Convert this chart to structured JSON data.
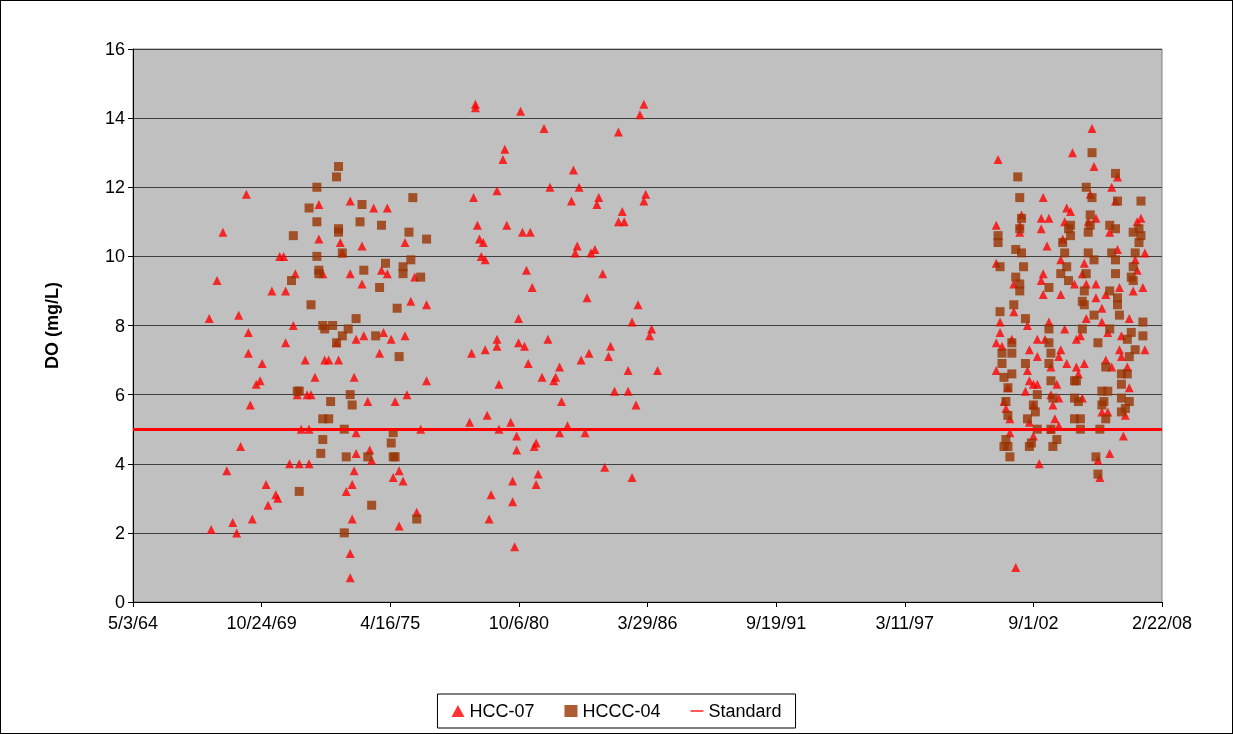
{
  "chart_data": {
    "type": "scatter",
    "ylabel": "DO (mg/L)",
    "xlim": [
      "1964-05-03",
      "2008-02-22"
    ],
    "xticks": [
      {
        "value": "1964-05-03",
        "label": "5/3/64"
      },
      {
        "value": "1969-10-24",
        "label": "10/24/69"
      },
      {
        "value": "1975-04-16",
        "label": "4/16/75"
      },
      {
        "value": "1980-10-06",
        "label": "10/6/80"
      },
      {
        "value": "1986-03-29",
        "label": "3/29/86"
      },
      {
        "value": "1991-09-19",
        "label": "9/19/91"
      },
      {
        "value": "1997-03-11",
        "label": "3/11/97"
      },
      {
        "value": "2002-09-01",
        "label": "9/1/02"
      },
      {
        "value": "2008-02-22",
        "label": "2/22/08"
      }
    ],
    "ylim": [
      0,
      16
    ],
    "yticks": [
      0,
      2,
      4,
      6,
      8,
      10,
      12,
      14,
      16
    ],
    "grid": "y",
    "legend": "bottom",
    "ref_lines": [
      {
        "axis": "y",
        "value": 5,
        "label": "Standard",
        "color": "#ff0000"
      }
    ],
    "series": [
      {
        "name": "HCC-07",
        "color": "#ff0000",
        "marker": "triangle",
        "x": [
          "1969-03",
          "1968-03",
          "1972-04",
          "1973-08",
          "1974-08",
          "1975-03",
          "1972-04",
          "1973-03",
          "1974-02",
          "1975-12",
          "1970-08",
          "1970-10",
          "1973-04",
          "1971-04",
          "1972-06",
          "1973-08",
          "1974-02",
          "1974-12",
          "1975-03",
          "1976-05",
          "1967-12",
          "1970-04",
          "1970-11",
          "1976-03",
          "1976-11",
          "1967-08",
          "1968-11",
          "1971-03",
          "1969-04",
          "1970-11",
          "1973-01",
          "1973-11",
          "1974-03",
          "1975-01",
          "1975-05",
          "1975-12",
          "1969-04",
          "1974-11",
          "1969-11",
          "1971-09",
          "1972-07",
          "1972-09",
          "1973-02",
          "1969-08",
          "1969-10",
          "1972-02",
          "1973-10",
          "1976-11",
          "1971-05",
          "1971-10",
          "1971-12",
          "1969-05",
          "1974-05",
          "1975-07",
          "1976-01",
          "1971-07",
          "1971-11",
          "1973-11",
          "1976-08",
          "1968-12",
          "1974-06",
          "1973-11",
          "1974-07",
          "1968-05",
          "1971-01",
          "1971-06",
          "1971-11",
          "1973-10",
          "1975-09",
          "1975-06",
          "1975-11",
          "1973-09",
          "1973-06",
          "1970-01",
          "1970-06",
          "1970-07",
          "1970-02",
          "1969-06",
          "1968-08",
          "1967-09",
          "1968-10",
          "1973-09",
          "1975-09",
          "1976-06",
          "1973-08",
          "1973-08",
          "1978-12",
          "1978-12",
          "1980-11",
          "1986-02",
          "1985-12",
          "1981-11",
          "1985-01",
          "1980-03",
          "1980-02",
          "1983-02",
          "1978-11",
          "1979-11",
          "1982-02",
          "1983-05",
          "1983-01",
          "1984-03",
          "1984-02",
          "1986-03",
          "1986-02",
          "1985-03",
          "1985-01",
          "1985-04",
          "1979-01",
          "1980-04",
          "1980-12",
          "1981-04",
          "1979-02",
          "1979-04",
          "1983-04",
          "1983-03",
          "1984-01",
          "1983-11",
          "1979-03",
          "1979-05",
          "1981-02",
          "1984-05",
          "1981-05",
          "1983-09",
          "1985-11",
          "1985-08",
          "1980-10",
          "1986-06",
          "1986-05",
          "1978-10",
          "1979-05",
          "1979-11",
          "1979-11",
          "1980-10",
          "1981-01",
          "1982-01",
          "1984-09",
          "1983-10",
          "1983-06",
          "1984-08",
          "1981-03",
          "1982-07",
          "1985-06",
          "1986-09",
          "1979-12",
          "1981-10",
          "1982-05",
          "1982-04",
          "1984-11",
          "1985-06",
          "1982-08",
          "1985-10",
          "1979-06",
          "1978-09",
          "1980-06",
          "1979-12",
          "1980-09",
          "1980-09",
          "1982-07",
          "1982-11",
          "1983-08",
          "1981-07",
          "1981-06",
          "1984-06",
          "1985-08",
          "1981-08",
          "1981-07",
          "1980-07",
          "1979-08",
          "1980-07",
          "1979-07",
          "1980-08",
          "2001-03",
          "2004-05",
          "2003-02",
          "2004-02",
          "2004-04",
          "2002-03",
          "2003-01",
          "2003-05",
          "2001-02",
          "2002-02",
          "2003-01",
          "2002-02",
          "2004-01",
          "2003-04",
          "2003-12",
          "2001-02",
          "2003-02",
          "2003-01",
          "2001-11",
          "2004-06",
          "2003-11",
          "2003-02",
          "2003-11",
          "2001-11",
          "2001-04",
          "2002-06",
          "2003-05",
          "2004-01",
          "2001-04",
          "2004-07",
          "2001-02",
          "2001-05",
          "2001-10",
          "2002-11",
          "2003-03",
          "2002-07",
          "2003-11",
          "2002-11",
          "2003-10",
          "2003-06",
          "2004-02",
          "2004-07",
          "2001-02",
          "2002-06",
          "2002-07",
          "2002-09",
          "2002-11",
          "2003-09",
          "2002-05",
          "2001-08",
          "2003-06",
          "2003-10",
          "2001-06",
          "2003-07",
          "2001-07",
          "2002-09",
          "2001-09",
          "2002-07",
          "2003-08",
          "2003-10",
          "2003-06",
          "2002-09",
          "2001-09",
          "2002-12",
          "2001-12",
          "2005-03",
          "2005-04",
          "2006-04",
          "2006-01",
          "2005-02",
          "2006-03",
          "2005-01",
          "2005-05",
          "2005-12",
          "2007-04",
          "2007-02",
          "2006-04",
          "2007-06",
          "2007-01",
          "2004-11",
          "2007-02",
          "2004-10",
          "2005-05",
          "2004-12",
          "2006-05",
          "2006-12",
          "2007-05",
          "2005-10",
          "2005-05",
          "2005-08",
          "2004-12",
          "2005-08",
          "2006-10",
          "2005-11",
          "2004-09",
          "2006-06",
          "2007-06",
          "2006-05",
          "2005-10",
          "2006-06",
          "2004-11",
          "2006-09",
          "2006-01",
          "2004-08",
          "2006-10",
          "2004-10",
          "2005-08",
          "2005-11",
          "2006-08",
          "2006-07",
          "2005-12",
          "2005-06",
          "2005-07"
        ],
        "values": [
          11.8,
          10.7,
          11.5,
          11.6,
          11.4,
          11.4,
          10.5,
          10.4,
          10.3,
          10.4,
          10.0,
          10.0,
          10.1,
          9.5,
          9.5,
          9.5,
          9.2,
          9.6,
          9.5,
          9.4,
          9.3,
          9.0,
          9.0,
          8.7,
          8.6,
          8.2,
          8.3,
          8.0,
          7.8,
          7.5,
          7.5,
          7.6,
          7.7,
          7.8,
          7.6,
          7.7,
          7.2,
          7.2,
          6.9,
          7.0,
          7.0,
          7.0,
          7.0,
          6.3,
          6.4,
          6.5,
          6.5,
          6.4,
          6.0,
          6.0,
          6.0,
          5.7,
          5.8,
          5.8,
          6.0,
          5.0,
          5.0,
          4.9,
          5.0,
          4.5,
          4.4,
          4.3,
          4.1,
          3.8,
          4.0,
          4.0,
          4.0,
          3.8,
          3.8,
          3.6,
          3.5,
          3.4,
          3.2,
          3.4,
          3.1,
          3.0,
          2.8,
          2.4,
          2.3,
          2.1,
          2.0,
          2.4,
          2.2,
          2.6,
          1.4,
          0.7,
          14.4,
          14.3,
          14.2,
          14.4,
          14.1,
          13.7,
          13.6,
          13.1,
          12.8,
          12.5,
          11.7,
          11.9,
          12.0,
          12.0,
          11.6,
          11.7,
          11.5,
          11.8,
          11.6,
          11.3,
          11.0,
          11.0,
          10.9,
          10.9,
          10.7,
          10.7,
          10.5,
          10.4,
          10.3,
          10.1,
          10.2,
          10.1,
          10.0,
          9.9,
          9.6,
          9.5,
          9.1,
          8.8,
          8.6,
          8.1,
          8.2,
          7.9,
          7.7,
          7.2,
          7.3,
          7.6,
          7.4,
          7.5,
          7.4,
          7.6,
          7.4,
          7.2,
          7.0,
          7.1,
          6.9,
          6.8,
          6.7,
          6.7,
          6.3,
          6.5,
          6.5,
          6.4,
          6.1,
          6.1,
          5.8,
          5.7,
          5.4,
          5.2,
          5.2,
          5.0,
          4.8,
          4.4,
          4.9,
          5.1,
          4.9,
          4.6,
          4.5,
          3.9,
          3.6,
          3.7,
          3.4,
          3.5,
          3.1,
          2.9,
          2.4,
          1.6,
          12.8,
          13.0,
          11.7,
          11.4,
          11.3,
          11.2,
          11.1,
          11.1,
          10.9,
          10.9,
          10.8,
          10.7,
          11.0,
          10.3,
          10.5,
          9.8,
          9.5,
          9.3,
          9.2,
          9.2,
          9.9,
          8.9,
          8.9,
          8.4,
          8.1,
          8.0,
          8.1,
          7.9,
          7.8,
          7.6,
          7.5,
          7.4,
          7.6,
          7.6,
          7.6,
          7.3,
          7.3,
          7.1,
          7.1,
          6.8,
          6.9,
          6.8,
          6.7,
          6.7,
          6.4,
          6.3,
          6.3,
          6.3,
          6.1,
          6.2,
          6.0,
          5.9,
          5.8,
          5.7,
          5.6,
          5.7,
          5.3,
          5.2,
          5.3,
          5.1,
          5.0,
          4.8,
          4.9,
          4.0,
          1.0,
          13.7,
          12.6,
          12.3,
          12.0,
          11.8,
          11.6,
          11.0,
          11.1,
          10.7,
          11.1,
          11.0,
          10.2,
          10.1,
          9.9,
          9.8,
          9.6,
          9.5,
          9.2,
          9.2,
          9.1,
          9.0,
          9.1,
          8.9,
          8.8,
          8.5,
          8.2,
          8.1,
          8.2,
          7.8,
          7.7,
          7.7,
          7.3,
          7.3,
          7.0,
          7.1,
          6.9,
          6.8,
          6.8,
          6.6,
          6.2,
          5.9,
          5.5,
          5.5,
          5.4,
          4.8,
          4.3,
          4.1,
          3.6
        ]
      },
      {
        "name": "HCCC-04",
        "color": "#993300",
        "marker": "square",
        "x": [
          "1973-02",
          "1973-01",
          "1972-03",
          "1976-04",
          "1971-11",
          "1974-02",
          "1972-03",
          "1974-01",
          "1974-12",
          "1973-02",
          "1973-02",
          "1971-03",
          "1976-02",
          "1976-11",
          "1973-04",
          "1972-03",
          "1976-03",
          "1975-02",
          "1972-04",
          "1972-04",
          "1974-03",
          "1975-11",
          "1975-11",
          "1976-08",
          "1971-02",
          "1974-11",
          "1971-12",
          "1975-08",
          "1973-11",
          "1972-06",
          "1972-11",
          "1972-07",
          "1973-07",
          "1973-04",
          "1974-09",
          "1973-01",
          "1975-09",
          "1971-06",
          "1971-05",
          "1973-08",
          "1972-10",
          "1973-09",
          "1972-06",
          "1972-09",
          "1973-05",
          "1975-06",
          "1972-06",
          "1975-05",
          "1972-05",
          "1973-06",
          "1974-05",
          "1975-06",
          "1975-07",
          "1971-06",
          "1974-07",
          "1976-06",
          "1973-05",
          "2002-01",
          "2002-02",
          "2002-03",
          "2002-02",
          "2001-03",
          "2001-03",
          "2004-04",
          "2004-03",
          "2004-04",
          "2001-12",
          "2002-03",
          "2003-12",
          "2004-01",
          "2001-04",
          "2002-04",
          "2001-12",
          "2002-02",
          "2002-02",
          "2003-05",
          "2003-11",
          "2004-02",
          "2004-03",
          "2001-04",
          "2001-11",
          "2002-05",
          "2003-05",
          "2001-10",
          "2001-10",
          "2001-05",
          "2003-05",
          "2003-06",
          "2001-05",
          "2002-05",
          "2003-05",
          "2001-10",
          "2001-06",
          "2001-08",
          "2003-06",
          "2004-06",
          "2002-11",
          "2003-07",
          "2004-06",
          "2001-07",
          "2002-09",
          "2001-08",
          "2002-06",
          "2002-10",
          "2004-06",
          "2002-11",
          "2003-06",
          "2003-09",
          "2001-07",
          "2002-08",
          "2001-06",
          "2001-08",
          "2003-07",
          "2002-07",
          "2001-09",
          "2005-03",
          "2006-03",
          "2004-12",
          "2005-03",
          "2006-04",
          "2007-04",
          "2005-02",
          "2005-12",
          "2006-03",
          "2005-02",
          "2005-01",
          "2007-03",
          "2006-12",
          "2007-04",
          "2007-03",
          "2005-01",
          "2006-01",
          "2007-01",
          "2005-04",
          "2006-03",
          "2006-12",
          "2004-12",
          "2006-03",
          "2006-11",
          "2006-12",
          "2004-11",
          "2005-12",
          "2006-04",
          "2004-10",
          "2004-11",
          "2006-04",
          "2006-05",
          "2005-04",
          "2007-05",
          "2004-10",
          "2005-12",
          "2006-11",
          "2007-05",
          "2005-06",
          "2006-09",
          "2007-01",
          "2006-10",
          "2005-10",
          "2006-06",
          "2006-09",
          "2004-07",
          "2006-06",
          "2005-08",
          "2005-11",
          "2005-09",
          "2006-06",
          "2006-10",
          "2004-08",
          "2005-08",
          "2006-06",
          "2006-08",
          "2005-10",
          "2004-09",
          "2005-07",
          "2004-09",
          "2005-05",
          "2005-06"
        ],
        "values": [
          12.6,
          12.3,
          12.0,
          11.7,
          11.4,
          11.5,
          11.0,
          11.0,
          10.9,
          10.8,
          10.7,
          10.6,
          10.7,
          10.5,
          10.1,
          10.0,
          9.9,
          9.8,
          9.6,
          9.5,
          9.6,
          9.7,
          9.5,
          9.4,
          9.3,
          9.1,
          8.6,
          8.5,
          8.2,
          8.0,
          8.0,
          7.9,
          7.9,
          7.7,
          7.7,
          7.5,
          7.1,
          6.1,
          6.1,
          6.0,
          5.8,
          5.7,
          5.3,
          5.3,
          5.0,
          4.9,
          4.7,
          4.6,
          4.3,
          4.2,
          4.2,
          4.2,
          4.2,
          3.2,
          2.8,
          2.4,
          2.0,
          12.3,
          11.7,
          11.1,
          10.8,
          10.6,
          10.4,
          10.9,
          10.8,
          10.6,
          10.2,
          10.1,
          10.4,
          10.1,
          9.7,
          9.7,
          9.4,
          9.2,
          9.0,
          9.1,
          9.5,
          9.7,
          9.3,
          8.4,
          8.6,
          8.2,
          7.9,
          7.5,
          7.2,
          7.2,
          7.5,
          7.2,
          6.9,
          6.9,
          6.9,
          6.6,
          6.5,
          6.2,
          6.4,
          6.4,
          6.0,
          5.9,
          5.9,
          5.8,
          5.7,
          5.4,
          5.3,
          5.5,
          5.3,
          5.0,
          5.0,
          4.7,
          4.7,
          4.6,
          4.5,
          4.5,
          4.5,
          4.5,
          4.2,
          13.0,
          12.4,
          12.0,
          11.7,
          11.6,
          11.6,
          11.2,
          10.9,
          10.8,
          10.9,
          10.7,
          10.8,
          10.7,
          10.6,
          10.4,
          10.1,
          10.1,
          10.1,
          9.9,
          9.9,
          9.7,
          9.5,
          9.5,
          9.4,
          9.3,
          9.0,
          9.0,
          8.8,
          8.7,
          8.6,
          8.6,
          8.3,
          8.3,
          8.1,
          7.9,
          7.9,
          7.8,
          7.7,
          7.5,
          7.6,
          7.3,
          7.1,
          6.8,
          6.6,
          6.6,
          6.4,
          6.3,
          6.1,
          6.1,
          5.8,
          5.9,
          5.8,
          5.8,
          5.7,
          5.5,
          5.6,
          5.3,
          5.3,
          5.0,
          5.0,
          4.2,
          3.7
        ]
      }
    ]
  }
}
